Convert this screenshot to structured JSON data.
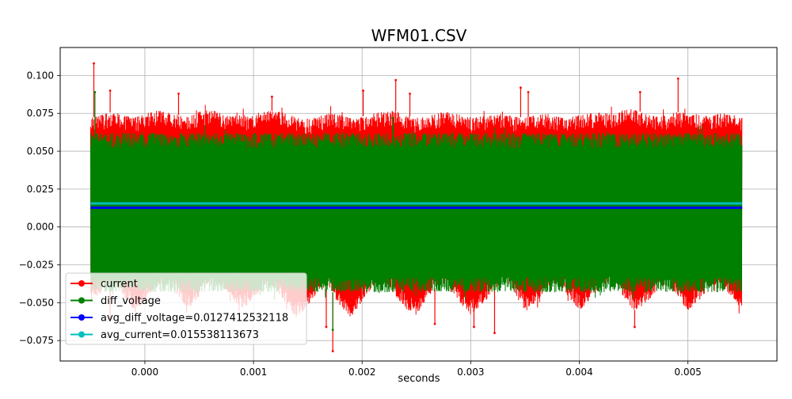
{
  "chart_data": {
    "type": "line",
    "title": "WFM01.CSV",
    "xlabel": "seconds",
    "ylabel": "",
    "xlim": [
      -0.00078,
      0.00582
    ],
    "ylim": [
      -0.0885,
      0.1185
    ],
    "grid": true,
    "legend_position": "lower-left",
    "x_ticks": [
      {
        "value": 0.0,
        "label": "0.000"
      },
      {
        "value": 0.001,
        "label": "0.001"
      },
      {
        "value": 0.002,
        "label": "0.002"
      },
      {
        "value": 0.003,
        "label": "0.003"
      },
      {
        "value": 0.004,
        "label": "0.004"
      },
      {
        "value": 0.005,
        "label": "0.005"
      }
    ],
    "y_ticks": [
      {
        "value": -0.075,
        "label": "−0.075"
      },
      {
        "value": -0.05,
        "label": "−0.050"
      },
      {
        "value": -0.025,
        "label": "−0.025"
      },
      {
        "value": 0.0,
        "label": "0.000"
      },
      {
        "value": 0.025,
        "label": "0.025"
      },
      {
        "value": 0.05,
        "label": "0.050"
      },
      {
        "value": 0.075,
        "label": "0.075"
      },
      {
        "value": 0.1,
        "label": "0.100"
      }
    ],
    "series": [
      {
        "name": "current",
        "color": "#ff0000",
        "kind": "band",
        "x": [
          -0.0005,
          -0.0004,
          -0.0003,
          -0.0002,
          -0.0001,
          0.0,
          0.0001,
          0.0002,
          0.0003,
          0.0004,
          0.0005,
          0.0006,
          0.0007,
          0.0008,
          0.0009,
          0.001,
          0.0011,
          0.0012,
          0.0013,
          0.0014,
          0.0015,
          0.0016,
          0.0017,
          0.0018,
          0.0019,
          0.002,
          0.0021,
          0.0022,
          0.0023,
          0.0024,
          0.0025,
          0.0026,
          0.0027,
          0.0028,
          0.0029,
          0.003,
          0.0031,
          0.0032,
          0.0033,
          0.0034,
          0.0035,
          0.0036,
          0.0037,
          0.0038,
          0.0039,
          0.004,
          0.0041,
          0.0042,
          0.0043,
          0.0044,
          0.0045,
          0.0046,
          0.0047,
          0.0048,
          0.0049,
          0.005,
          0.0051,
          0.0052,
          0.0053,
          0.0054,
          0.0055
        ],
        "upper": [
          0.072,
          0.074,
          0.076,
          0.074,
          0.072,
          0.075,
          0.077,
          0.076,
          0.074,
          0.073,
          0.076,
          0.078,
          0.075,
          0.073,
          0.074,
          0.073,
          0.076,
          0.077,
          0.075,
          0.072,
          0.071,
          0.073,
          0.075,
          0.074,
          0.072,
          0.073,
          0.075,
          0.076,
          0.077,
          0.074,
          0.072,
          0.073,
          0.075,
          0.076,
          0.074,
          0.072,
          0.073,
          0.074,
          0.075,
          0.073,
          0.072,
          0.074,
          0.075,
          0.073,
          0.072,
          0.074,
          0.075,
          0.076,
          0.074,
          0.077,
          0.078,
          0.075,
          0.073,
          0.074,
          0.076,
          0.075,
          0.074,
          0.073,
          0.075,
          0.074,
          0.073
        ],
        "lower": [
          -0.05,
          -0.043,
          -0.036,
          -0.045,
          -0.055,
          -0.049,
          -0.039,
          -0.036,
          -0.045,
          -0.054,
          -0.046,
          -0.038,
          -0.037,
          -0.047,
          -0.055,
          -0.047,
          -0.039,
          -0.04,
          -0.052,
          -0.06,
          -0.052,
          -0.043,
          -0.04,
          -0.052,
          -0.06,
          -0.049,
          -0.039,
          -0.037,
          -0.045,
          -0.054,
          -0.058,
          -0.047,
          -0.038,
          -0.039,
          -0.05,
          -0.058,
          -0.052,
          -0.043,
          -0.036,
          -0.043,
          -0.056,
          -0.05,
          -0.04,
          -0.037,
          -0.046,
          -0.055,
          -0.048,
          -0.039,
          -0.036,
          -0.045,
          -0.055,
          -0.052,
          -0.043,
          -0.038,
          -0.045,
          -0.055,
          -0.049,
          -0.04,
          -0.038,
          -0.046,
          -0.055
        ],
        "spikes": [
          {
            "x": -0.00047,
            "y": 0.108
          },
          {
            "x": -0.00032,
            "y": 0.09
          },
          {
            "x": -0.00032,
            "y": -0.06
          },
          {
            "x": 0.00031,
            "y": 0.088
          },
          {
            "x": 0.00117,
            "y": 0.086
          },
          {
            "x": 0.00173,
            "y": -0.082
          },
          {
            "x": 0.00167,
            "y": -0.066
          },
          {
            "x": 0.00231,
            "y": 0.097
          },
          {
            "x": 0.00201,
            "y": 0.09
          },
          {
            "x": 0.00244,
            "y": 0.088
          },
          {
            "x": 0.00267,
            "y": -0.064
          },
          {
            "x": 0.00303,
            "y": -0.066
          },
          {
            "x": 0.00322,
            "y": -0.07
          },
          {
            "x": 0.00346,
            "y": 0.092
          },
          {
            "x": 0.00353,
            "y": 0.089
          },
          {
            "x": 0.00456,
            "y": 0.089
          },
          {
            "x": 0.00491,
            "y": 0.098
          },
          {
            "x": 0.00451,
            "y": -0.066
          }
        ]
      },
      {
        "name": "diff_voltage",
        "color": "#008000",
        "kind": "band",
        "x": [
          -0.0005,
          0.0055
        ],
        "upper": [
          0.062,
          0.062
        ],
        "lower": [
          -0.043,
          -0.043
        ],
        "spikes": [
          {
            "x": -0.00046,
            "y": 0.089
          },
          {
            "x": 0.00173,
            "y": -0.068
          },
          {
            "x": 0.00228,
            "y": 0.072
          }
        ]
      },
      {
        "name": "avg_diff_voltage=0.0127412532118",
        "color": "#0000ff",
        "kind": "hline",
        "x": [
          -0.0005,
          0.0055
        ],
        "values": [
          0.0127412532118,
          0.0127412532118
        ]
      },
      {
        "name": "avg_current=0.015538113673",
        "color": "#00bfbf",
        "kind": "hline",
        "x": [
          -0.0005,
          0.0055
        ],
        "values": [
          0.015538113673,
          0.015538113673
        ]
      }
    ]
  }
}
